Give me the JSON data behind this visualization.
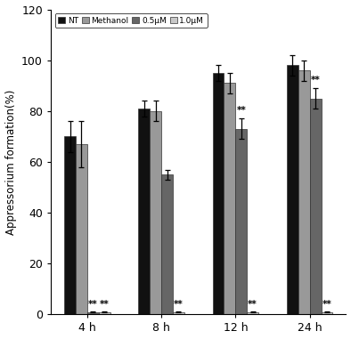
{
  "groups": [
    "4 h",
    "8 h",
    "12 h",
    "24 h"
  ],
  "series_labels": [
    "NT",
    "Methanol",
    "0.5μM",
    "1.0μM"
  ],
  "colors": [
    "#111111",
    "#999999",
    "#666666",
    "#c8c8c8"
  ],
  "values": [
    [
      70,
      67,
      1,
      1
    ],
    [
      81,
      80,
      55,
      1
    ],
    [
      95,
      91,
      73,
      1
    ],
    [
      98,
      96,
      85,
      1
    ]
  ],
  "errors": [
    [
      6,
      9,
      0.3,
      0.3
    ],
    [
      3,
      4,
      2,
      0.3
    ],
    [
      3,
      4,
      4,
      0.3
    ],
    [
      4,
      4,
      4,
      0.3
    ]
  ],
  "ylabel": "Appressorium formation(%)",
  "ylim": [
    0,
    120
  ],
  "yticks": [
    0,
    20,
    40,
    60,
    80,
    100,
    120
  ],
  "bar_width": 0.17,
  "figsize": [
    3.94,
    3.81
  ],
  "dpi": 100
}
